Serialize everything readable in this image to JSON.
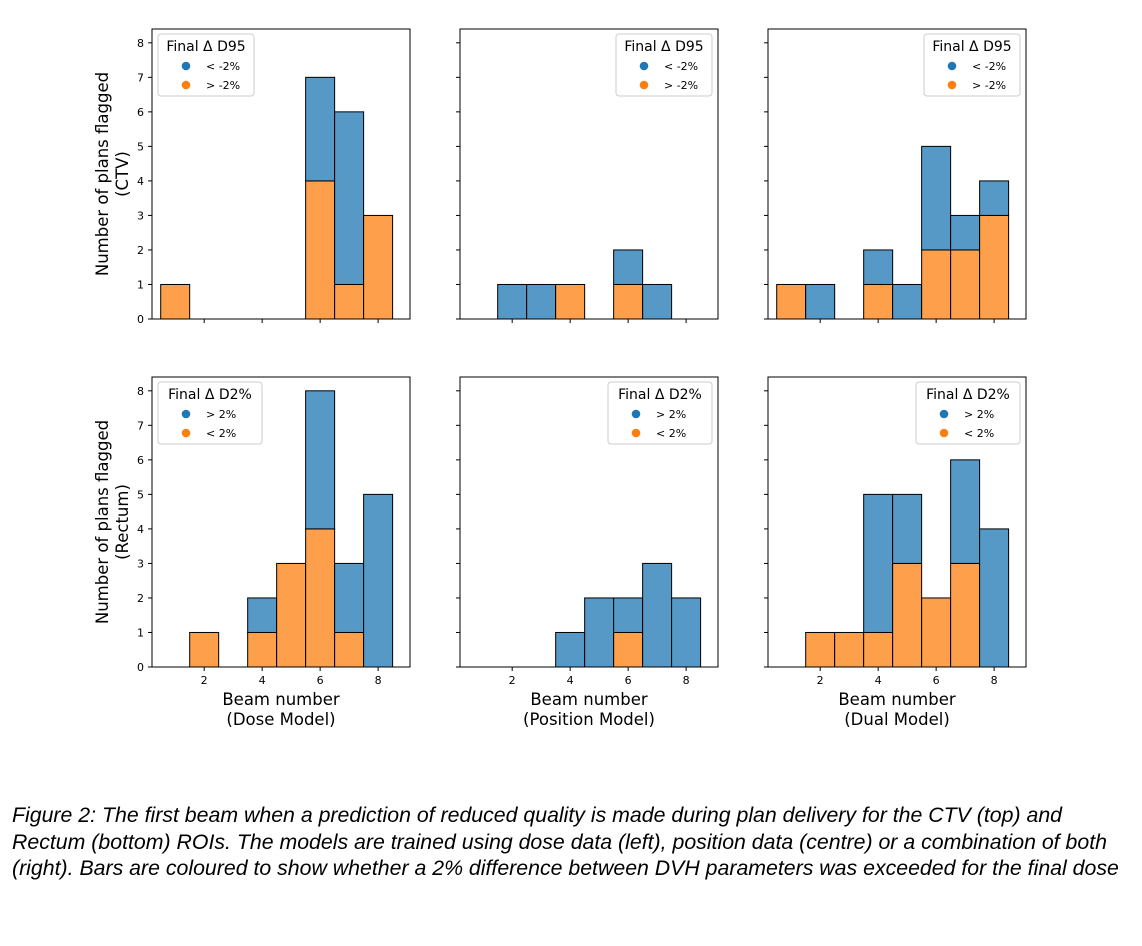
{
  "colors": {
    "blue": "#5699c6",
    "orange": "#fe9f4b",
    "legend_blue": "#1f77b4",
    "legend_orange": "#ff7f0e"
  },
  "caption": "Figure 2: The first beam when a prediction of reduced quality is made during plan delivery for the CTV (top) and Rectum (bottom) ROIs. The models are trained using dose data (left), position data (centre) or a combination of both (right). Bars are coloured to show whether a 2% difference between DVH parameters was exceeded for the final dose",
  "chart_data": [
    {
      "type": "bar",
      "stacked": true,
      "row": 0,
      "col": 0,
      "xlabel": "",
      "ylabel": "Number of plans flagged\n(CTV)",
      "xlim": [
        0.2,
        9.1
      ],
      "ylim": [
        0,
        8.4
      ],
      "xticks": [
        2,
        4,
        6,
        8
      ],
      "yticks": [
        0,
        1,
        2,
        3,
        4,
        5,
        6,
        7,
        8
      ],
      "legend": {
        "title": "Final Δ D95",
        "position": "top-left",
        "entries": [
          "< -2%",
          "> -2%"
        ]
      },
      "x": [
        1,
        6,
        7,
        8
      ],
      "series": [
        {
          "name": "< -2%",
          "color": "blue",
          "values": [
            0,
            3,
            5,
            0
          ]
        },
        {
          "name": "> -2%",
          "color": "orange",
          "values": [
            1,
            4,
            1,
            3
          ]
        }
      ]
    },
    {
      "type": "bar",
      "stacked": true,
      "row": 0,
      "col": 1,
      "xlabel": "",
      "ylabel": "",
      "xlim": [
        0.2,
        9.1
      ],
      "ylim": [
        0,
        8.4
      ],
      "xticks": [
        2,
        4,
        6,
        8
      ],
      "yticks": [
        0,
        1,
        2,
        3,
        4,
        5,
        6,
        7,
        8
      ],
      "legend": {
        "title": "Final Δ D95",
        "position": "top-right",
        "entries": [
          "< -2%",
          "> -2%"
        ]
      },
      "x": [
        2,
        3,
        4,
        6,
        7
      ],
      "series": [
        {
          "name": "< -2%",
          "color": "blue",
          "values": [
            1,
            1,
            0,
            1,
            1
          ]
        },
        {
          "name": "> -2%",
          "color": "orange",
          "values": [
            0,
            0,
            1,
            1,
            0
          ]
        }
      ]
    },
    {
      "type": "bar",
      "stacked": true,
      "row": 0,
      "col": 2,
      "xlabel": "",
      "ylabel": "",
      "xlim": [
        0.2,
        9.1
      ],
      "ylim": [
        0,
        8.4
      ],
      "xticks": [
        2,
        4,
        6,
        8
      ],
      "yticks": [
        0,
        1,
        2,
        3,
        4,
        5,
        6,
        7,
        8
      ],
      "legend": {
        "title": "Final Δ D95",
        "position": "top-right",
        "entries": [
          "< -2%",
          "> -2%"
        ]
      },
      "x": [
        1,
        2,
        4,
        5,
        6,
        7,
        8
      ],
      "series": [
        {
          "name": "< -2%",
          "color": "blue",
          "values": [
            0,
            1,
            1,
            1,
            3,
            1,
            1
          ]
        },
        {
          "name": "> -2%",
          "color": "orange",
          "values": [
            1,
            0,
            1,
            0,
            2,
            2,
            3
          ]
        }
      ]
    },
    {
      "type": "bar",
      "stacked": true,
      "row": 1,
      "col": 0,
      "xlabel": "Beam number\n(Dose Model)",
      "ylabel": "Number of plans flagged\n(Rectum)",
      "xlim": [
        0.2,
        9.1
      ],
      "ylim": [
        0,
        8.4
      ],
      "xticks": [
        2,
        4,
        6,
        8
      ],
      "yticks": [
        0,
        1,
        2,
        3,
        4,
        5,
        6,
        7,
        8
      ],
      "legend": {
        "title": "Final Δ D2%",
        "position": "top-left",
        "entries": [
          "> 2%",
          "< 2%"
        ]
      },
      "x": [
        2,
        4,
        5,
        6,
        7,
        8
      ],
      "series": [
        {
          "name": "> 2%",
          "color": "blue",
          "values": [
            0,
            1,
            0,
            4,
            2,
            5
          ]
        },
        {
          "name": "< 2%",
          "color": "orange",
          "values": [
            1,
            1,
            3,
            4,
            1,
            0
          ]
        }
      ]
    },
    {
      "type": "bar",
      "stacked": true,
      "row": 1,
      "col": 1,
      "xlabel": "Beam number\n(Position Model)",
      "ylabel": "",
      "xlim": [
        0.2,
        9.1
      ],
      "ylim": [
        0,
        8.4
      ],
      "xticks": [
        2,
        4,
        6,
        8
      ],
      "yticks": [
        0,
        1,
        2,
        3,
        4,
        5,
        6,
        7,
        8
      ],
      "legend": {
        "title": "Final Δ D2%",
        "position": "top-right",
        "entries": [
          "> 2%",
          "< 2%"
        ]
      },
      "x": [
        4,
        5,
        6,
        7,
        8
      ],
      "series": [
        {
          "name": "> 2%",
          "color": "blue",
          "values": [
            1,
            2,
            1,
            3,
            2
          ]
        },
        {
          "name": "< 2%",
          "color": "orange",
          "values": [
            0,
            0,
            1,
            0,
            0
          ]
        }
      ]
    },
    {
      "type": "bar",
      "stacked": true,
      "row": 1,
      "col": 2,
      "xlabel": "Beam number\n(Dual Model)",
      "ylabel": "",
      "xlim": [
        0.2,
        9.1
      ],
      "ylim": [
        0,
        8.4
      ],
      "xticks": [
        2,
        4,
        6,
        8
      ],
      "yticks": [
        0,
        1,
        2,
        3,
        4,
        5,
        6,
        7,
        8
      ],
      "legend": {
        "title": "Final Δ D2%",
        "position": "top-right",
        "entries": [
          "> 2%",
          "< 2%"
        ]
      },
      "x": [
        2,
        3,
        4,
        5,
        6,
        7,
        8
      ],
      "series": [
        {
          "name": "> 2%",
          "color": "blue",
          "values": [
            0,
            0,
            4,
            2,
            0,
            3,
            4
          ]
        },
        {
          "name": "< 2%",
          "color": "orange",
          "values": [
            1,
            1,
            1,
            3,
            2,
            3,
            0
          ]
        }
      ]
    }
  ]
}
